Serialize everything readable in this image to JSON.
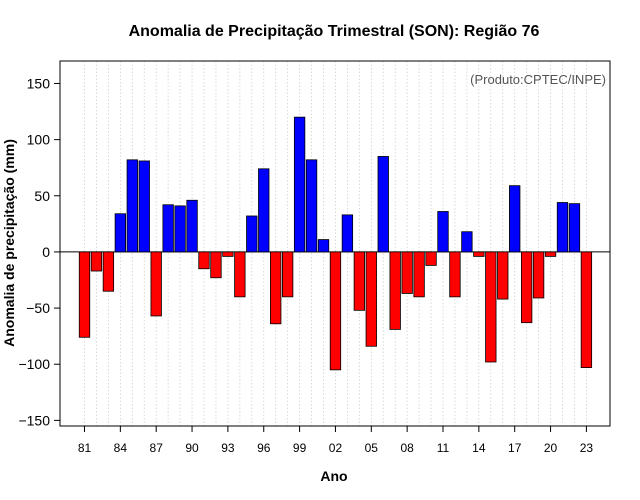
{
  "chart_data": {
    "type": "bar",
    "title": "Anomalia de Precipitação Trimestral (SON): Região 76",
    "annotation": "(Produto:CPTEC/INPE)",
    "xlabel": "Ano",
    "ylabel": "Anomalia de precipitação (mm)",
    "ylim": [
      -155,
      170
    ],
    "yticks": [
      -150,
      -100,
      -50,
      0,
      50,
      100,
      150
    ],
    "x_start_year": 1981,
    "xtick_labels": [
      "81",
      "84",
      "87",
      "90",
      "93",
      "96",
      "99",
      "02",
      "05",
      "08",
      "11",
      "14",
      "17",
      "20",
      "23"
    ],
    "xtick_years": [
      1981,
      1984,
      1987,
      1990,
      1993,
      1996,
      1999,
      2002,
      2005,
      2008,
      2011,
      2014,
      2017,
      2020,
      2023
    ],
    "years": [
      1981,
      1982,
      1983,
      1984,
      1985,
      1986,
      1987,
      1988,
      1989,
      1990,
      1991,
      1992,
      1993,
      1994,
      1995,
      1996,
      1997,
      1998,
      1999,
      2000,
      2001,
      2002,
      2003,
      2004,
      2005,
      2006,
      2007,
      2008,
      2009,
      2010,
      2011,
      2012,
      2013,
      2014,
      2015,
      2016,
      2017,
      2018,
      2019,
      2020,
      2021,
      2022,
      2023
    ],
    "values": [
      -76,
      -17,
      -35,
      34,
      82,
      81,
      -57,
      42,
      41,
      46,
      -15,
      -23,
      -4,
      -40,
      32,
      74,
      -64,
      -40,
      120,
      82,
      11,
      -105,
      33,
      -52,
      -84,
      85,
      -69,
      -37,
      -40,
      -12,
      36,
      -40,
      18,
      -4,
      -98,
      -42,
      59,
      -63,
      -41,
      -4,
      44,
      43,
      -103
    ],
    "colors": {
      "positive": "#0000ff",
      "negative": "#ff0000"
    },
    "grid": true
  }
}
